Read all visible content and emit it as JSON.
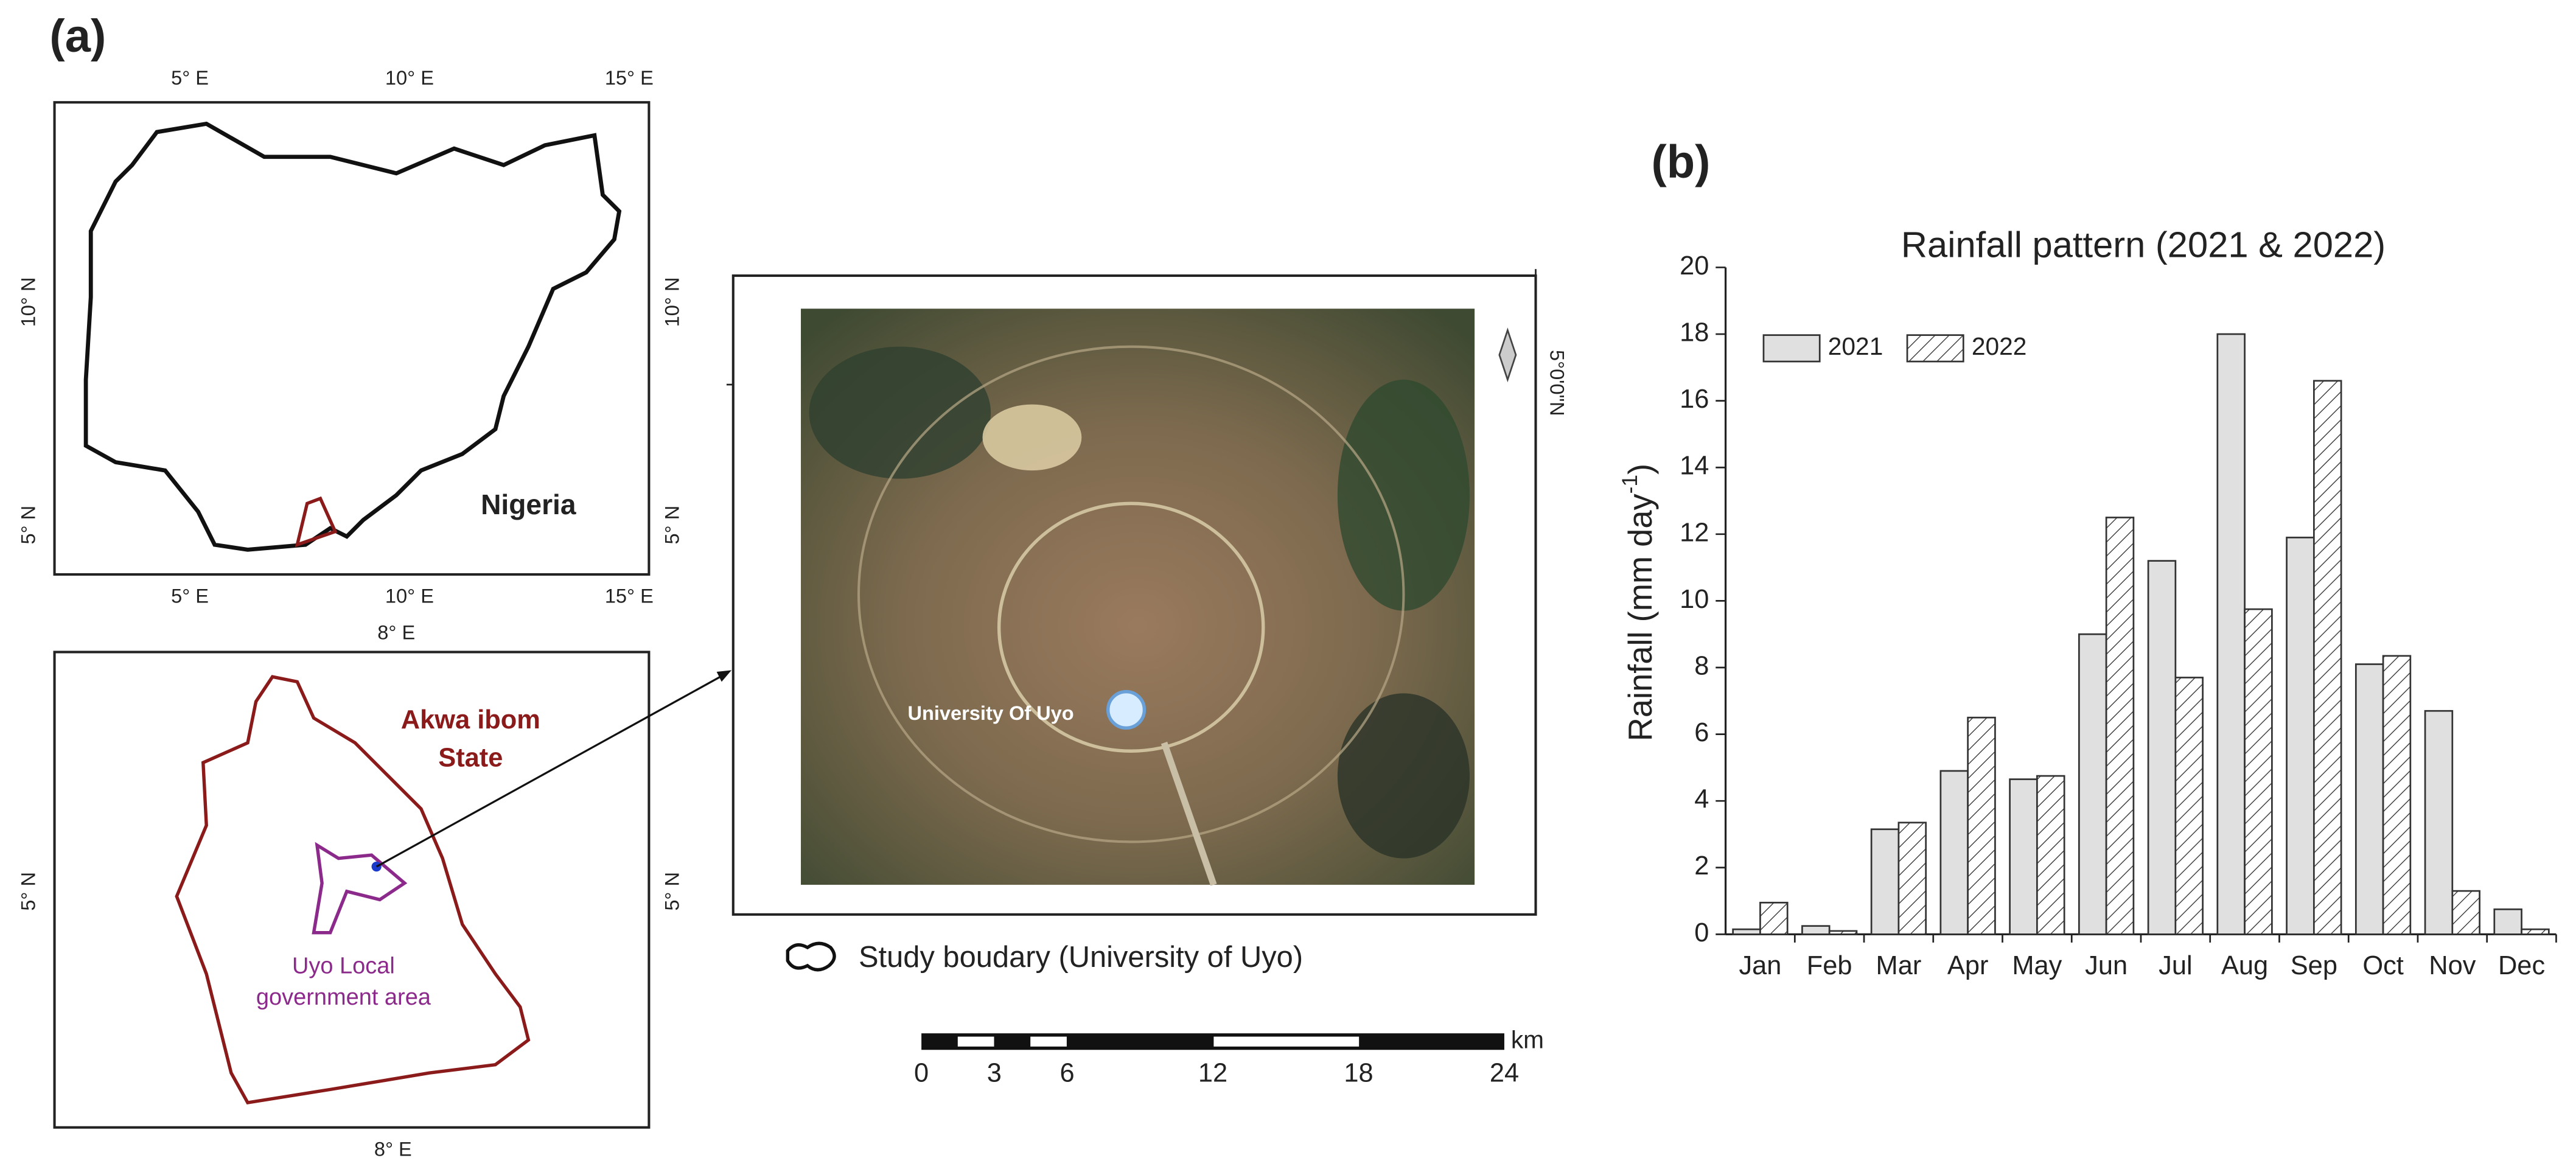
{
  "panel_a": {
    "label": "(a)",
    "nigeria_map": {
      "top_x_ticks": [
        "5° E",
        "10° E",
        "15° E"
      ],
      "bottom_x_ticks": [
        "5° E",
        "10° E",
        "15° E"
      ],
      "left_y_ticks": [
        "10° N",
        "5° N"
      ],
      "right_y_ticks": [
        "10° N",
        "5° N"
      ],
      "label": "Nigeria"
    },
    "akwa_ibom_map": {
      "top_x_tick": "8° E",
      "bottom_x_tick": "8° E",
      "left_y_tick": "5° N",
      "right_y_tick": "5° N",
      "state_label": [
        "Akwa ibom",
        "State"
      ],
      "lga_label": [
        "Uyo Local",
        "government area"
      ]
    },
    "study_area": {
      "place_label": "University Of Uyo",
      "lat_tick": "5°0'0\"N",
      "legend": "Study boudary (University of Uyo)",
      "scale_ticks": [
        "0",
        "3",
        "6",
        "12",
        "18",
        "24"
      ],
      "scale_unit": "km"
    }
  },
  "chart_data": {
    "type": "bar",
    "panel_label": "(b)",
    "title": "Rainfall pattern (2021 & 2022)",
    "y_label": {
      "text": "Rainfall (mm day",
      "superscript": "-1",
      "suffix": ")"
    },
    "categories": [
      "Jan",
      "Feb",
      "Mar",
      "Apr",
      "May",
      "Jun",
      "Jul",
      "Aug",
      "Sep",
      "Oct",
      "Nov",
      "Dec"
    ],
    "series": [
      {
        "name": "2021",
        "color": "#e0e0e0",
        "values": [
          0.15,
          0.25,
          3.15,
          4.9,
          4.65,
          9.0,
          11.2,
          18.0,
          11.9,
          8.1,
          6.7,
          0.75
        ]
      },
      {
        "name": "2022",
        "color": "#ffffff",
        "pattern": "hatch",
        "values": [
          0.95,
          0.1,
          3.35,
          6.5,
          4.75,
          12.5,
          7.7,
          9.75,
          16.6,
          8.35,
          1.3,
          0.15
        ]
      }
    ],
    "ylim": [
      0,
      20
    ],
    "yticks": [
      0,
      2,
      4,
      6,
      8,
      10,
      12,
      14,
      16,
      18,
      20
    ],
    "legend": "top-left",
    "grid": false
  }
}
